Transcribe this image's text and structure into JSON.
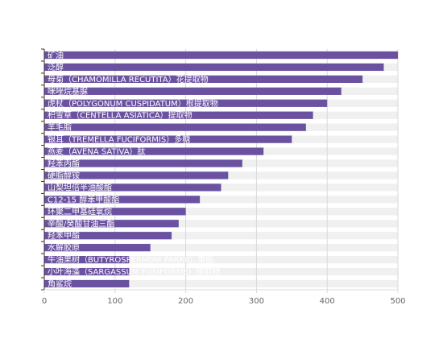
{
  "chart_data": {
    "type": "bar",
    "orientation": "horizontal",
    "categories": [
      "矿油",
      "泛醇",
      "母菊（CHAMOMILLA RECUTITA）花提取物",
      "咪唑烷基脲",
      "虎杖（POLYGONUM CUSPIDATUM）根提取物",
      "积雪草（CENTELLA ASIATICA）提取物",
      "羊毛脂",
      "银耳（TREMELLA FUCIFORMIS）多糖",
      "燕麦（AVENA SATIVA）肽",
      "羟苯丙酯",
      "硬脂醇铵",
      "山梨坦倍半油酸酯",
      "C12-15 醇苯甲酸酯",
      "环聚二甲基硅氧烷",
      "辛酸/癸酸甘油三酯",
      "羟苯甲酯",
      "水解胶原",
      "牛油果树（BUTYROSPERMUM PARKII）果脂",
      "小叶海藻（SARGASSUM FUSIFORME）提取物",
      "角鲨烷"
    ],
    "values": [
      500,
      480,
      450,
      420,
      400,
      380,
      370,
      350,
      310,
      280,
      260,
      250,
      220,
      200,
      190,
      180,
      150,
      120,
      120,
      120
    ],
    "xlim": [
      0,
      500
    ],
    "xticks": [
      "0",
      "100",
      "200",
      "300",
      "400",
      "500"
    ],
    "title": "",
    "xlabel": "",
    "ylabel": "",
    "grid": true,
    "colors": {
      "bar": "#6b52a1",
      "track": "#f0f0f0",
      "grid": "#d9d9d9",
      "axis": "#333333"
    }
  }
}
